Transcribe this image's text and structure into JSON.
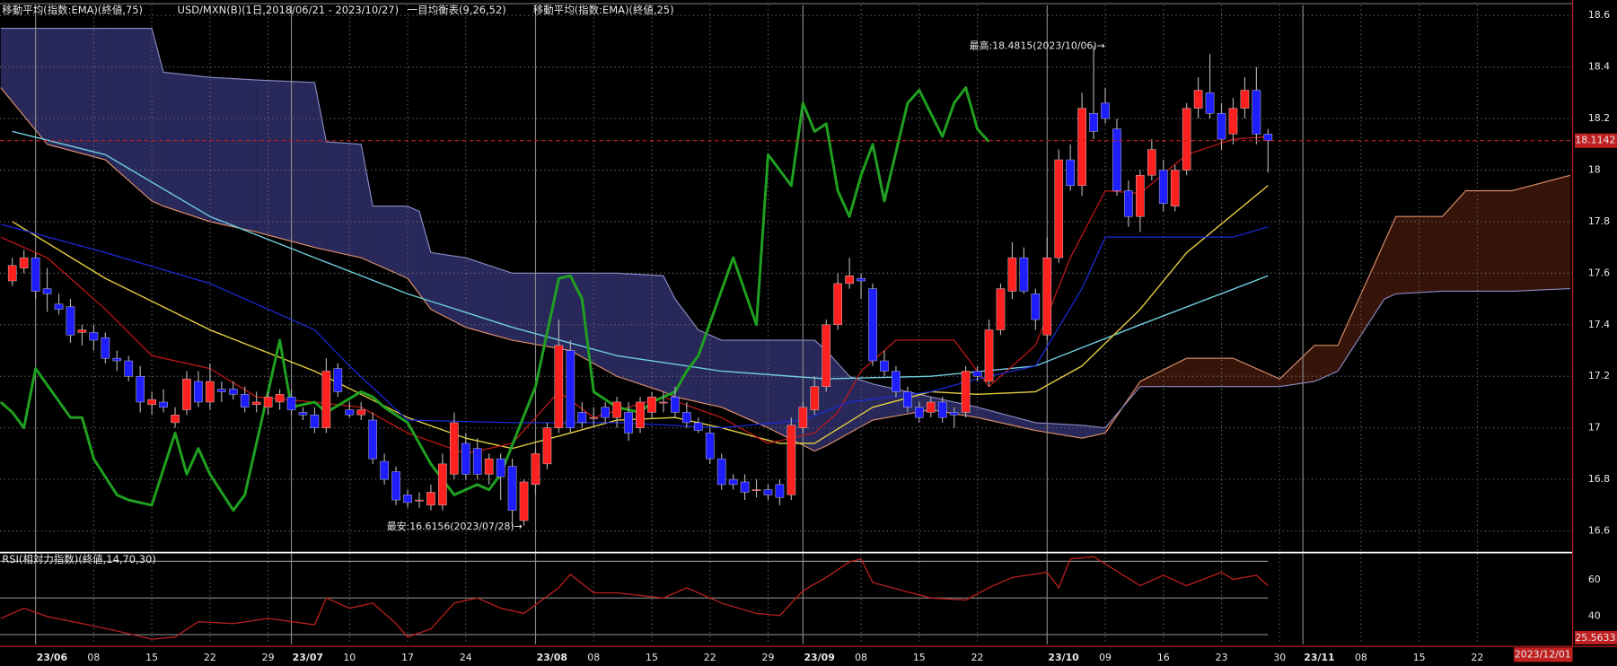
{
  "chart_data": [
    {
      "type": "candlestick",
      "title": "USD/MXN(B)(1日,2018/06/21 - 2023/10/27)",
      "up_color": "#ff2020",
      "down_color": "#1e1eff",
      "wick_color": "#b0b0b0",
      "open": [
        17.57,
        17.62,
        17.66,
        17.54,
        17.48,
        17.47,
        17.37,
        17.37,
        17.35,
        17.27,
        17.26,
        17.2,
        17.09,
        17.1,
        17.02,
        17.07,
        17.18,
        17.1,
        17.15,
        17.15,
        17.13,
        17.09,
        17.08,
        17.1,
        17.12,
        17.06,
        17.05,
        17.0,
        17.23,
        17.07,
        17.05,
        17.03,
        16.87,
        16.83,
        16.74,
        16.72,
        16.7,
        16.7,
        16.82,
        16.94,
        16.92,
        16.82,
        16.88,
        16.85,
        16.64,
        16.78,
        16.86,
        17.0,
        17.3,
        17.06,
        17.04,
        17.08,
        17.04,
        17.06,
        17.0,
        17.06,
        17.1,
        17.12,
        17.06,
        17.02,
        16.98,
        16.88,
        16.8,
        16.79,
        16.76,
        16.76,
        16.78,
        16.74,
        17.0,
        17.07,
        17.16,
        17.4,
        17.56,
        17.58,
        17.54,
        17.26,
        17.22,
        17.14,
        17.08,
        17.06,
        17.1,
        17.06,
        17.06,
        17.22,
        17.18,
        17.38,
        17.53,
        17.66,
        17.52,
        17.36,
        17.66,
        18.04,
        17.94,
        18.22,
        18.26,
        18.16,
        17.92,
        17.82,
        17.98,
        18.0,
        17.86,
        18.0,
        18.24,
        18.3,
        18.22,
        18.14,
        18.24,
        18.31,
        18.14
      ],
      "high": [
        17.66,
        17.69,
        17.68,
        17.62,
        17.52,
        17.5,
        17.4,
        17.4,
        17.37,
        17.3,
        17.28,
        17.24,
        17.14,
        17.15,
        17.08,
        17.22,
        17.22,
        17.25,
        17.18,
        17.18,
        17.16,
        17.14,
        17.14,
        17.15,
        17.15,
        17.08,
        17.08,
        17.27,
        17.25,
        17.1,
        17.1,
        17.06,
        16.9,
        16.85,
        16.76,
        16.75,
        16.78,
        16.9,
        17.06,
        16.98,
        16.96,
        16.9,
        16.9,
        16.88,
        16.8,
        16.92,
        17.02,
        17.42,
        17.34,
        17.1,
        17.08,
        17.1,
        17.12,
        17.1,
        17.12,
        17.14,
        17.14,
        17.16,
        17.1,
        17.04,
        17.0,
        16.9,
        16.82,
        16.82,
        16.8,
        16.78,
        16.8,
        17.04,
        17.1,
        17.2,
        17.42,
        17.6,
        17.66,
        17.6,
        17.56,
        17.3,
        17.24,
        17.16,
        17.1,
        17.12,
        17.12,
        17.08,
        17.24,
        17.24,
        17.42,
        17.56,
        17.72,
        17.7,
        17.54,
        17.74,
        18.08,
        18.1,
        18.3,
        18.4815,
        18.32,
        18.2,
        17.96,
        18.0,
        18.12,
        18.04,
        18.02,
        18.26,
        18.36,
        18.45,
        18.26,
        18.28,
        18.36,
        18.4,
        18.16
      ],
      "low": [
        17.55,
        17.6,
        17.5,
        17.45,
        17.44,
        17.33,
        17.32,
        17.3,
        17.25,
        17.22,
        17.18,
        17.06,
        17.05,
        17.06,
        17.0,
        17.05,
        17.08,
        17.07,
        17.1,
        17.11,
        17.06,
        17.06,
        17.05,
        17.07,
        17.05,
        17.03,
        16.98,
        16.98,
        17.12,
        17.04,
        17.03,
        16.86,
        16.78,
        16.7,
        16.69,
        16.69,
        16.68,
        16.68,
        16.8,
        16.8,
        16.8,
        16.78,
        16.72,
        16.6156,
        16.62,
        16.74,
        16.84,
        16.98,
        16.98,
        17.0,
        17.0,
        17.02,
        17.0,
        16.95,
        16.98,
        17.04,
        17.06,
        17.04,
        17.0,
        16.98,
        16.86,
        16.76,
        16.76,
        16.72,
        16.73,
        16.72,
        16.7,
        16.72,
        16.98,
        17.05,
        17.14,
        17.38,
        17.54,
        17.5,
        17.24,
        17.2,
        17.12,
        17.06,
        17.02,
        17.04,
        17.02,
        17.0,
        17.04,
        17.18,
        17.16,
        17.36,
        17.5,
        17.52,
        17.38,
        17.34,
        17.64,
        17.92,
        17.9,
        18.12,
        18.18,
        17.9,
        17.78,
        17.76,
        17.96,
        17.84,
        17.84,
        17.98,
        18.2,
        18.2,
        18.08,
        18.1,
        18.2,
        18.1,
        17.99
      ],
      "close": [
        17.63,
        17.66,
        17.53,
        17.52,
        17.46,
        17.36,
        17.38,
        17.34,
        17.27,
        17.26,
        17.2,
        17.1,
        17.11,
        17.08,
        17.05,
        17.19,
        17.1,
        17.18,
        17.14,
        17.13,
        17.08,
        17.1,
        17.12,
        17.13,
        17.07,
        17.05,
        17.0,
        17.22,
        17.14,
        17.05,
        17.07,
        16.88,
        16.8,
        16.72,
        16.71,
        16.72,
        16.75,
        16.86,
        17.02,
        16.82,
        16.82,
        16.88,
        16.81,
        16.68,
        16.79,
        16.9,
        17.0,
        17.32,
        17.0,
        17.02,
        17.04,
        17.04,
        17.1,
        16.98,
        17.1,
        17.12,
        17.1,
        17.06,
        17.02,
        16.99,
        16.88,
        16.78,
        16.78,
        16.75,
        16.76,
        16.74,
        16.73,
        17.01,
        17.08,
        17.16,
        17.4,
        17.56,
        17.59,
        17.57,
        17.26,
        17.22,
        17.14,
        17.08,
        17.04,
        17.1,
        17.04,
        17.05,
        17.22,
        17.2,
        17.38,
        17.54,
        17.66,
        17.53,
        17.42,
        17.66,
        18.04,
        17.94,
        18.24,
        18.15,
        18.2,
        17.92,
        17.82,
        17.98,
        18.08,
        17.87,
        18.0,
        18.24,
        18.31,
        18.22,
        18.12,
        18.24,
        18.31,
        18.14,
        18.1142
      ],
      "last_price": 18.1142,
      "last_price_color": "#c02020",
      "xlim": [
        -1.06,
        134.2
      ],
      "ylim": [
        16.52,
        18.64
      ],
      "yticks": [
        16.6,
        16.8,
        17.0,
        17.2,
        17.4,
        17.6,
        17.8,
        18.0,
        18.2,
        18.4,
        18.6
      ],
      "xticks": [
        {
          "value": 2,
          "label": "23/06"
        },
        {
          "value": 7,
          "label": "08"
        },
        {
          "value": 12,
          "label": "15"
        },
        {
          "value": 17,
          "label": "22"
        },
        {
          "value": 22,
          "label": "29"
        },
        {
          "value": 24,
          "label": "23/07"
        },
        {
          "value": 29,
          "label": "10"
        },
        {
          "value": 34,
          "label": "17"
        },
        {
          "value": 39,
          "label": "24"
        },
        {
          "value": 45,
          "label": "23/08"
        },
        {
          "value": 50,
          "label": "08"
        },
        {
          "value": 55,
          "label": "15"
        },
        {
          "value": 60,
          "label": "22"
        },
        {
          "value": 65,
          "label": "29"
        },
        {
          "value": 68,
          "label": "23/09"
        },
        {
          "value": 73,
          "label": "08"
        },
        {
          "value": 78,
          "label": "15"
        },
        {
          "value": 83,
          "label": "22"
        },
        {
          "value": 89,
          "label": "23/10"
        },
        {
          "value": 94,
          "label": "09"
        },
        {
          "value": 99,
          "label": "16"
        },
        {
          "value": 104,
          "label": "23"
        },
        {
          "value": 109,
          "label": "30"
        },
        {
          "value": 111,
          "label": "23/11"
        },
        {
          "value": 116,
          "label": "08"
        },
        {
          "value": 121,
          "label": "15"
        },
        {
          "value": 126,
          "label": "22"
        }
      ],
      "grid": true,
      "date_marker": "2023/12/01",
      "annotations": [
        "最高:18.4815(2023/10/06)→",
        "最安:16.6156(2023/07/28)→"
      ],
      "series": [
        {
          "name": "移動平均(指数:EMA)(終値,75)",
          "color": "#6fd0e0",
          "x": [
            0,
            8,
            17,
            26,
            34,
            43,
            52,
            61,
            70,
            79,
            88,
            97,
            108
          ],
          "values": [
            18.15,
            18.06,
            17.82,
            17.66,
            17.52,
            17.39,
            17.28,
            17.22,
            17.19,
            17.2,
            17.24,
            17.4,
            17.59
          ]
        },
        {
          "name": "移動平均(指数:EMA)(終値,25)",
          "color": "#e8d040",
          "x": [
            0,
            8,
            17,
            26,
            34,
            39,
            43,
            48,
            52,
            57,
            61,
            66,
            69,
            74,
            79,
            83,
            88,
            92,
            97,
            101,
            108
          ],
          "values": [
            17.8,
            17.58,
            17.38,
            17.22,
            17.04,
            16.96,
            16.92,
            16.98,
            17.03,
            17.04,
            17.0,
            16.94,
            16.94,
            17.08,
            17.14,
            17.13,
            17.14,
            17.24,
            17.46,
            17.68,
            17.94
          ]
        }
      ],
      "ichimoku": {
        "name": "一目均衡表(9,26,52)",
        "conversion": {
          "color": "#c01818",
          "x": [
            -1,
            3,
            8,
            12,
            17,
            21,
            26,
            30,
            34,
            39,
            43,
            47,
            50,
            56,
            61,
            65,
            69,
            71,
            73,
            76,
            81,
            84,
            88,
            91,
            94,
            97,
            101,
            105,
            108
          ],
          "values": [
            17.74,
            17.66,
            17.46,
            17.28,
            17.23,
            17.12,
            17.1,
            17.08,
            16.98,
            16.9,
            16.94,
            17.14,
            17.04,
            17.12,
            17.04,
            16.94,
            16.98,
            17.06,
            17.22,
            17.34,
            17.34,
            17.16,
            17.32,
            17.66,
            17.92,
            17.91,
            18.06,
            18.12,
            18.13
          ]
        },
        "base": {
          "color": "#1a2ad8",
          "x": [
            -1,
            8,
            17,
            26,
            29,
            34,
            43,
            52,
            61,
            68,
            72,
            79,
            83,
            88,
            92,
            94,
            105,
            108
          ],
          "values": [
            17.79,
            17.68,
            17.56,
            17.38,
            17.24,
            17.03,
            17.02,
            17.02,
            17.0,
            17.03,
            17.1,
            17.14,
            17.19,
            17.24,
            17.54,
            17.74,
            17.74,
            17.78
          ]
        },
        "lagging": {
          "color": "#20a020",
          "x": [
            -1,
            0,
            1,
            2,
            5,
            6,
            7,
            9,
            10,
            12,
            14,
            15,
            16,
            17,
            19,
            20,
            21,
            23,
            24,
            26,
            27,
            30,
            31,
            32,
            34,
            36,
            38,
            40,
            41,
            42,
            45,
            47,
            48,
            49,
            50,
            52,
            54,
            55,
            57,
            58,
            59,
            62,
            64,
            65,
            67,
            68,
            69,
            70,
            71,
            72,
            73,
            74,
            75,
            77,
            78,
            80,
            81,
            82,
            83,
            84
          ],
          "values": [
            17.1,
            17.06,
            17.0,
            17.23,
            17.04,
            17.04,
            16.88,
            16.74,
            16.72,
            16.7,
            16.98,
            16.82,
            16.92,
            16.82,
            16.68,
            16.74,
            16.94,
            17.34,
            17.08,
            17.1,
            17.06,
            17.14,
            17.12,
            17.08,
            17.02,
            16.86,
            16.74,
            16.78,
            16.76,
            16.82,
            17.16,
            17.58,
            17.59,
            17.5,
            17.14,
            17.08,
            17.06,
            17.1,
            17.14,
            17.22,
            17.28,
            17.66,
            17.4,
            18.06,
            17.94,
            18.26,
            18.15,
            18.18,
            17.92,
            17.82,
            17.98,
            18.1,
            17.88,
            18.26,
            18.31,
            18.13,
            18.26,
            18.32,
            18.16,
            18.11
          ]
        },
        "cloud": {
          "span_a_color": "#e0906c",
          "span_b_color": "#8c8cc8",
          "bear_fill": "#2c2c64",
          "bull_fill": "#3c160a",
          "x": [
            -1,
            3,
            8,
            12,
            13,
            17,
            21,
            26,
            27,
            30,
            31,
            34,
            35,
            36,
            39,
            43,
            48,
            52,
            56,
            57,
            59,
            61,
            65,
            69,
            70,
            72,
            74,
            79,
            83,
            88,
            92,
            94,
            97,
            101,
            105,
            109,
            112,
            114,
            118,
            119,
            123,
            125,
            129,
            134
          ],
          "span_a": [
            18.32,
            18.1,
            18.04,
            17.88,
            17.86,
            17.8,
            17.76,
            17.7,
            17.69,
            17.66,
            17.64,
            17.58,
            17.52,
            17.46,
            17.39,
            17.34,
            17.3,
            17.2,
            17.14,
            17.12,
            17.1,
            17.08,
            17.0,
            16.91,
            16.93,
            16.98,
            17.03,
            17.07,
            17.04,
            16.99,
            16.96,
            16.98,
            17.18,
            17.27,
            17.27,
            17.19,
            17.32,
            17.32,
            17.72,
            17.82,
            17.82,
            17.92,
            17.92,
            17.98
          ],
          "span_b": [
            18.55,
            18.55,
            18.55,
            18.55,
            18.38,
            18.36,
            18.35,
            18.34,
            18.11,
            18.1,
            17.86,
            17.86,
            17.84,
            17.68,
            17.66,
            17.6,
            17.6,
            17.6,
            17.59,
            17.5,
            17.38,
            17.34,
            17.34,
            17.34,
            17.3,
            17.2,
            17.17,
            17.12,
            17.08,
            17.02,
            17.01,
            17.0,
            17.16,
            17.16,
            17.16,
            17.16,
            17.18,
            17.22,
            17.5,
            17.52,
            17.53,
            17.53,
            17.53,
            17.54
          ]
        }
      }
    },
    {
      "type": "line",
      "title": "RSI(相対力指数)(終値,14,70,30)",
      "color": "#c02020",
      "level_color": "#8a8a8a",
      "x": [
        -1,
        1,
        3,
        6,
        9,
        12,
        14,
        16,
        19,
        22,
        26,
        27,
        29,
        31,
        33,
        34,
        36,
        38,
        40,
        42,
        44,
        47,
        48,
        50,
        52,
        56,
        58,
        61,
        64,
        66,
        68,
        70,
        72,
        73,
        74,
        79,
        82,
        84,
        86,
        89,
        90,
        91,
        93,
        97,
        99,
        101,
        104,
        105,
        107,
        108
      ],
      "values": [
        38.8,
        44.4,
        39.9,
        36.0,
        32.0,
        27.5,
        28.7,
        37.1,
        36.0,
        38.8,
        35.4,
        50,
        44.4,
        47.2,
        36.0,
        28.7,
        33.1,
        47.2,
        50,
        44.4,
        41.6,
        55.6,
        62.9,
        52.8,
        52.8,
        50,
        55.6,
        47.2,
        41.6,
        40.4,
        53.9,
        61.2,
        69.7,
        71.3,
        58.4,
        50,
        48.9,
        55.6,
        61.2,
        64.0,
        55.6,
        71.3,
        72.5,
        56.7,
        62.4,
        56.7,
        64.0,
        60.1,
        62.4,
        56.7
      ],
      "ylim": [
        24.7,
        74.2
      ],
      "yticks": [
        40,
        60
      ],
      "levels": [
        30,
        50,
        70
      ],
      "bottom_label": "25.5633"
    }
  ]
}
